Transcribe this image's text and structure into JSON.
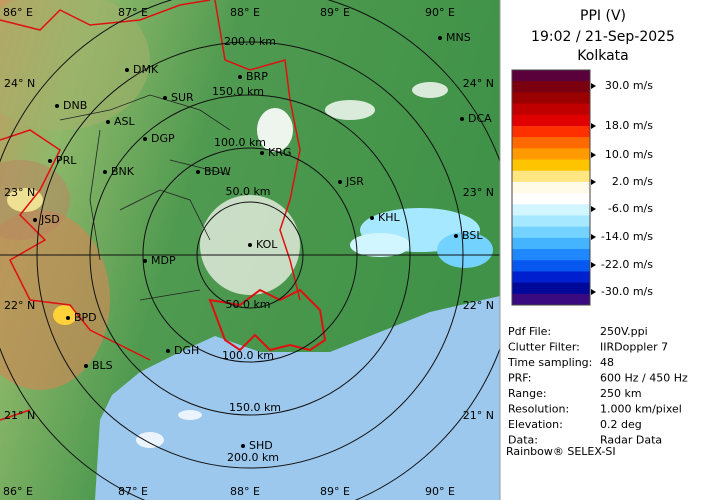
{
  "map": {
    "lon_labels": [
      "86° E",
      "87° E",
      "88° E",
      "89° E",
      "90° E"
    ],
    "lat_labels": [
      "24° N",
      "23° N",
      "22° N",
      "21° N"
    ],
    "range_labels": [
      "200.0 km",
      "150.0 km",
      "100.0 km",
      "50.0 km",
      "50.0 km",
      "100.0 km",
      "150.0 km",
      "200.0 km"
    ],
    "cities": [
      "MNS",
      "DMK",
      "BRP",
      "DNB",
      "SUR",
      "ASL",
      "DGP",
      "DCA",
      "PRL",
      "BNK",
      "KRG",
      "BDW",
      "JSR",
      "JSD",
      "KHL",
      "BSL",
      "MDP",
      "KOL",
      "BPD",
      "DGH",
      "BLS",
      "SHD"
    ]
  },
  "panel": {
    "title": "PPI (V)",
    "time": "19:02 / 21-Sep-2025",
    "station": "Kolkata",
    "colorbar": [
      "#5a003a",
      "#7a0010",
      "#9a0000",
      "#c00000",
      "#e00000",
      "#ff3000",
      "#ff6a00",
      "#ff9a00",
      "#ffc400",
      "#ffe680",
      "#fffbe8",
      "#ffffff",
      "#d2f6ff",
      "#a6e8ff",
      "#74d2ff",
      "#44b4ff",
      "#2088ff",
      "#0658f0",
      "#0020d0",
      "#00089a",
      "#3a0a80"
    ],
    "scale_labels": [
      "30.0 m/s",
      "18.0 m/s",
      "10.0 m/s",
      "2.0 m/s",
      "-6.0 m/s",
      "-14.0 m/s",
      "-22.0 m/s",
      "-30.0 m/s"
    ],
    "info": [
      [
        "Pdf File:",
        "250V.ppi"
      ],
      [
        "Clutter Filter:",
        "IIRDoppler 7"
      ],
      [
        "Time sampling:",
        "48"
      ],
      [
        "PRF:",
        "600 Hz / 450 Hz"
      ],
      [
        "Range:",
        "250 km"
      ],
      [
        "Resolution:",
        "1.000 km/pixel"
      ],
      [
        "Elevation:",
        "0.2 deg"
      ],
      [
        "Data:",
        "Radar Data"
      ]
    ],
    "footer": "Rainbow® SELEX-SI"
  }
}
